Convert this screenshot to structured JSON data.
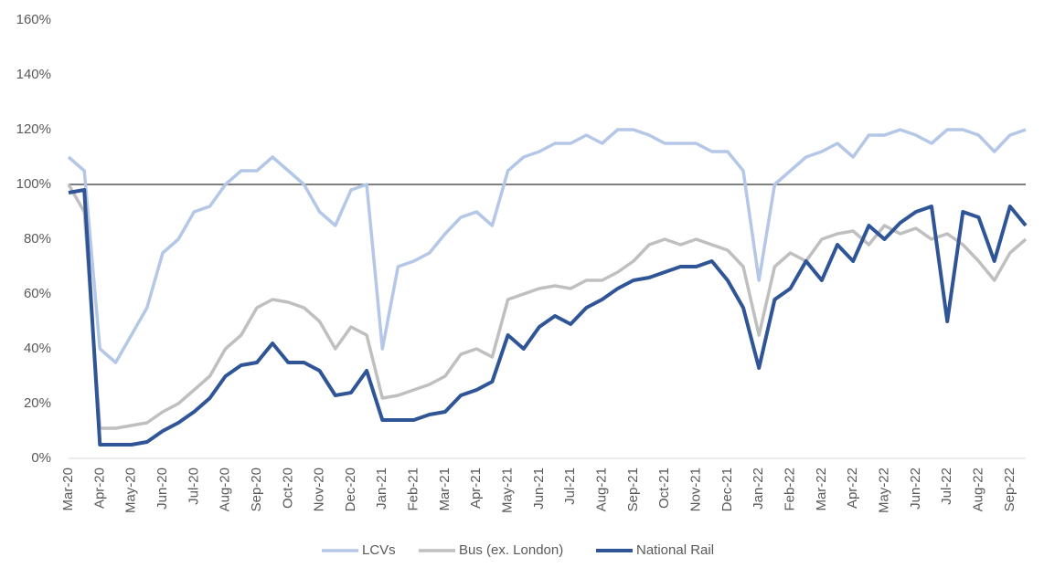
{
  "chart_data": {
    "type": "line",
    "categories": [
      "Mar-20",
      null,
      "Apr-20",
      null,
      "May-20",
      null,
      "Jun-20",
      null,
      "Jul-20",
      null,
      "Aug-20",
      null,
      "Sep-20",
      null,
      "Oct-20",
      null,
      "Nov-20",
      null,
      "Dec-20",
      null,
      "Jan-21",
      null,
      "Feb-21",
      null,
      "Mar-21",
      null,
      "Apr-21",
      null,
      "May-21",
      null,
      "Jun-21",
      null,
      "Jul-21",
      null,
      "Aug-21",
      null,
      "Sep-21",
      null,
      "Oct-21",
      null,
      "Nov-21",
      null,
      "Dec-21",
      null,
      "Jan-22",
      null,
      "Feb-22",
      null,
      "Mar-22",
      null,
      "Apr-22",
      null,
      "May-22",
      null,
      "Jun-22",
      null,
      "Jul-22",
      null,
      "Aug-22",
      null,
      "Sep-22",
      null
    ],
    "series": [
      {
        "name": "LCVs",
        "color": "#b4c7e7",
        "values": [
          110,
          105,
          40,
          35,
          45,
          55,
          75,
          80,
          90,
          92,
          100,
          105,
          105,
          110,
          105,
          100,
          90,
          85,
          98,
          100,
          40,
          70,
          72,
          75,
          82,
          88,
          90,
          85,
          105,
          110,
          112,
          115,
          115,
          118,
          115,
          120,
          120,
          118,
          115,
          115,
          115,
          112,
          112,
          105,
          65,
          100,
          105,
          110,
          112,
          115,
          110,
          118,
          118,
          120,
          118,
          115,
          120,
          120,
          118,
          112,
          118,
          120
        ]
      },
      {
        "name": "Bus (ex. London)",
        "color": "#bfbfbf",
        "values": [
          100,
          90,
          11,
          11,
          12,
          13,
          17,
          20,
          25,
          30,
          40,
          45,
          55,
          58,
          57,
          55,
          50,
          40,
          48,
          45,
          22,
          23,
          25,
          27,
          30,
          38,
          40,
          37,
          58,
          60,
          62,
          63,
          62,
          65,
          65,
          68,
          72,
          78,
          80,
          78,
          80,
          78,
          76,
          70,
          45,
          70,
          75,
          72,
          80,
          82,
          83,
          78,
          85,
          82,
          84,
          80,
          82,
          78,
          72,
          65,
          75,
          80
        ]
      },
      {
        "name": "National Rail",
        "color": "#2f5597",
        "values": [
          97,
          98,
          5,
          5,
          5,
          6,
          10,
          13,
          17,
          22,
          30,
          34,
          35,
          42,
          35,
          35,
          32,
          23,
          24,
          32,
          14,
          14,
          14,
          16,
          17,
          23,
          25,
          28,
          45,
          40,
          48,
          52,
          49,
          55,
          58,
          62,
          65,
          66,
          68,
          70,
          70,
          72,
          65,
          55,
          33,
          58,
          62,
          72,
          65,
          78,
          72,
          85,
          80,
          86,
          90,
          92,
          50,
          90,
          88,
          72,
          92,
          85
        ]
      }
    ],
    "reference_line": 100,
    "ylim": [
      0,
      160
    ],
    "yticks": [
      {
        "value": 0,
        "label": "0%"
      },
      {
        "value": 20,
        "label": "20%"
      },
      {
        "value": 40,
        "label": "40%"
      },
      {
        "value": 60,
        "label": "60%"
      },
      {
        "value": 80,
        "label": "80%"
      },
      {
        "value": 100,
        "label": "100%"
      },
      {
        "value": 120,
        "label": "120%"
      },
      {
        "value": 140,
        "label": "140%"
      },
      {
        "value": 160,
        "label": "160%"
      }
    ],
    "legend": "bottom"
  }
}
